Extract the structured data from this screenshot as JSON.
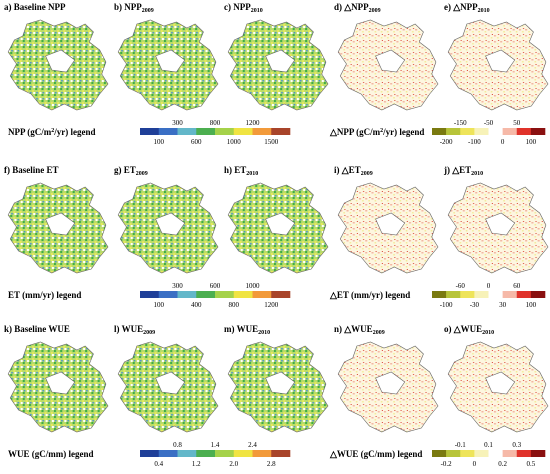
{
  "rows": [
    {
      "panels": [
        {
          "label": "a) Baseline NPP"
        },
        {
          "label": "b) NPP",
          "sub": "2009"
        },
        {
          "label": "c) NPP",
          "sub": "2010"
        },
        {
          "label": "d) △NPP",
          "sub": "2009"
        },
        {
          "label": "e) △NPP",
          "sub": "2010"
        }
      ],
      "legend_left": {
        "title": "NPP (gC/m",
        "sup": "2",
        "title_end": "/yr) legend",
        "ticks_top": [
          "300",
          "800",
          "1200"
        ],
        "ticks_bottom": [
          "100",
          "600",
          "1000",
          "1500"
        ]
      },
      "legend_right": {
        "title": "△NPP  (gC/m",
        "sup": "2",
        "title_end": "/yr) legend",
        "ticks_top": [
          "-150",
          "-50",
          "50"
        ],
        "ticks_bottom": [
          "-200",
          "-100",
          "0",
          "100"
        ]
      }
    },
    {
      "panels": [
        {
          "label": "f) Baseline ET"
        },
        {
          "label": "g) ET",
          "sub": "2009"
        },
        {
          "label": "h) ET",
          "sub": "2010"
        },
        {
          "label": "i) △ET",
          "sub": "2009"
        },
        {
          "label": "j) △ET",
          "sub": "2010"
        }
      ],
      "legend_left": {
        "title": "ET (mm/yr) legend",
        "ticks_top": [
          "300",
          "600",
          "1000"
        ],
        "ticks_bottom": [
          "100",
          "400",
          "800",
          "1200"
        ]
      },
      "legend_right": {
        "title": "△ET  (mm/yr) legend",
        "ticks_top": [
          "-60",
          "0",
          "60"
        ],
        "ticks_bottom": [
          "-100",
          "-30",
          "30",
          "100"
        ]
      }
    },
    {
      "panels": [
        {
          "label": "k) Baseline WUE"
        },
        {
          "label": "l) WUE",
          "sub": "2009"
        },
        {
          "label": "m) WUE",
          "sub": "2010"
        },
        {
          "label": "n) △WUE",
          "sub": "2009"
        },
        {
          "label": "o) △WUE",
          "sub": "2010"
        }
      ],
      "legend_left": {
        "title": "WUE (gC/mm) legend",
        "ticks_top": [
          "0.8",
          "1.4",
          "2.4"
        ],
        "ticks_bottom": [
          "0.4",
          "1.2",
          "2.0",
          "2.8"
        ]
      },
      "legend_right": {
        "title": "△WUE (gC/mm) legend",
        "ticks_top": [
          "-0.1",
          "0.1",
          "0.3"
        ],
        "ticks_bottom": [
          "-0.2",
          "0",
          "0.2",
          "0.5"
        ]
      }
    }
  ]
}
